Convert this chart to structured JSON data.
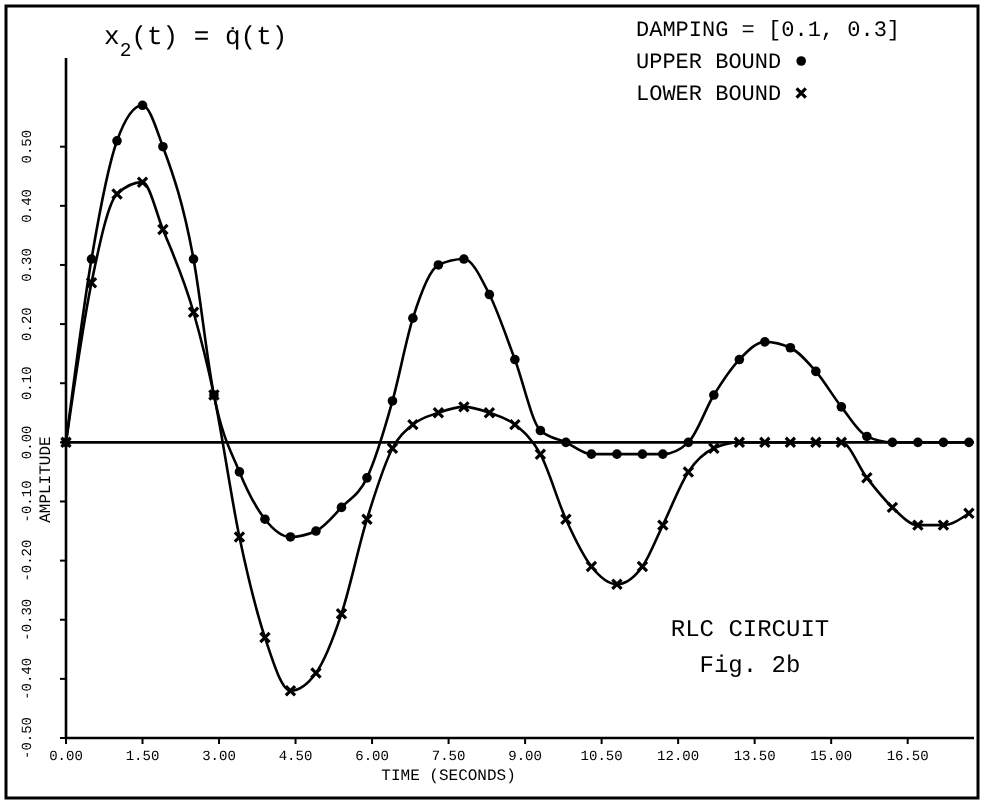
{
  "chart_data": {
    "type": "line",
    "xlabel": "TIME  (SECONDS)",
    "ylabel": "AMPLITUDE",
    "legend_title": "DAMPING = [0.1, 0.3]",
    "legend": "top right",
    "line_style": "solid",
    "x": [
      0,
      0.5,
      1.0,
      1.5,
      1.9,
      2.5,
      2.9,
      3.4,
      3.9,
      4.4,
      4.9,
      5.4,
      5.9,
      6.4,
      6.8,
      7.3,
      7.8,
      8.3,
      8.8,
      9.3,
      9.8,
      10.3,
      10.8,
      11.3,
      11.7,
      12.2,
      12.7,
      13.2,
      13.7,
      14.2,
      14.7,
      15.2,
      15.7,
      16.2,
      16.7,
      17.2,
      17.7
    ],
    "series": [
      {
        "name": "UPPER BOUND",
        "color": "#000000",
        "marker": "circle",
        "values": [
          0,
          0.31,
          0.51,
          0.57,
          0.5,
          0.31,
          0.08,
          -0.05,
          -0.13,
          -0.16,
          -0.15,
          -0.11,
          -0.06,
          0.07,
          0.21,
          0.3,
          0.31,
          0.25,
          0.14,
          0.02,
          0.0,
          -0.02,
          -0.02,
          -0.02,
          -0.02,
          0,
          0.08,
          0.14,
          0.17,
          0.16,
          0.12,
          0.06,
          0.01,
          0,
          0,
          0,
          0
        ]
      },
      {
        "name": "LOWER BOUND",
        "color": "#000000",
        "marker": "cross",
        "values": [
          0,
          0.27,
          0.42,
          0.44,
          0.36,
          0.22,
          0.08,
          -0.16,
          -0.33,
          -0.42,
          -0.39,
          -0.29,
          -0.13,
          -0.01,
          0.03,
          0.05,
          0.06,
          0.05,
          0.03,
          -0.02,
          -0.13,
          -0.21,
          -0.24,
          -0.21,
          -0.14,
          -0.05,
          -0.01,
          0,
          0,
          0,
          0,
          0,
          -0.06,
          -0.11,
          -0.14,
          -0.14,
          -0.12
        ]
      }
    ],
    "xlim": [
      0,
      17.8
    ],
    "xticks": [
      {
        "value": 0,
        "label": "0.00"
      },
      {
        "value": 1.5,
        "label": "1.50"
      },
      {
        "value": 3,
        "label": "3.00"
      },
      {
        "value": 4.5,
        "label": "4.50"
      },
      {
        "value": 6,
        "label": "6.00"
      },
      {
        "value": 7.5,
        "label": "7.50"
      },
      {
        "value": 9,
        "label": "9.00"
      },
      {
        "value": 10.5,
        "label": "10.50"
      },
      {
        "value": 12,
        "label": "12.00"
      },
      {
        "value": 13.5,
        "label": "13.50"
      },
      {
        "value": 15,
        "label": "15.00"
      },
      {
        "value": 16.5,
        "label": "16.50"
      }
    ],
    "ylim": [
      -0.5,
      0.65
    ],
    "yticks": [
      {
        "value": -0.5,
        "label": "-0.50"
      },
      {
        "value": -0.4,
        "label": "-0.40"
      },
      {
        "value": -0.3,
        "label": "-0.30"
      },
      {
        "value": -0.2,
        "label": "-0.20"
      },
      {
        "value": -0.1,
        "label": "-0.10"
      },
      {
        "value": 0,
        "label": "0.00"
      },
      {
        "value": 0.1,
        "label": "0.10"
      },
      {
        "value": 0.2,
        "label": "0.20"
      },
      {
        "value": 0.3,
        "label": "0.30"
      },
      {
        "value": 0.4,
        "label": "0.40"
      },
      {
        "value": 0.5,
        "label": "0.50"
      }
    ],
    "ref_lines": [
      {
        "axis": "y",
        "value": 0
      }
    ],
    "annotations": [
      "x$_{2}$(t) = q̇(t)",
      "RLC CIRCUIT",
      "Fig. 2b"
    ]
  }
}
